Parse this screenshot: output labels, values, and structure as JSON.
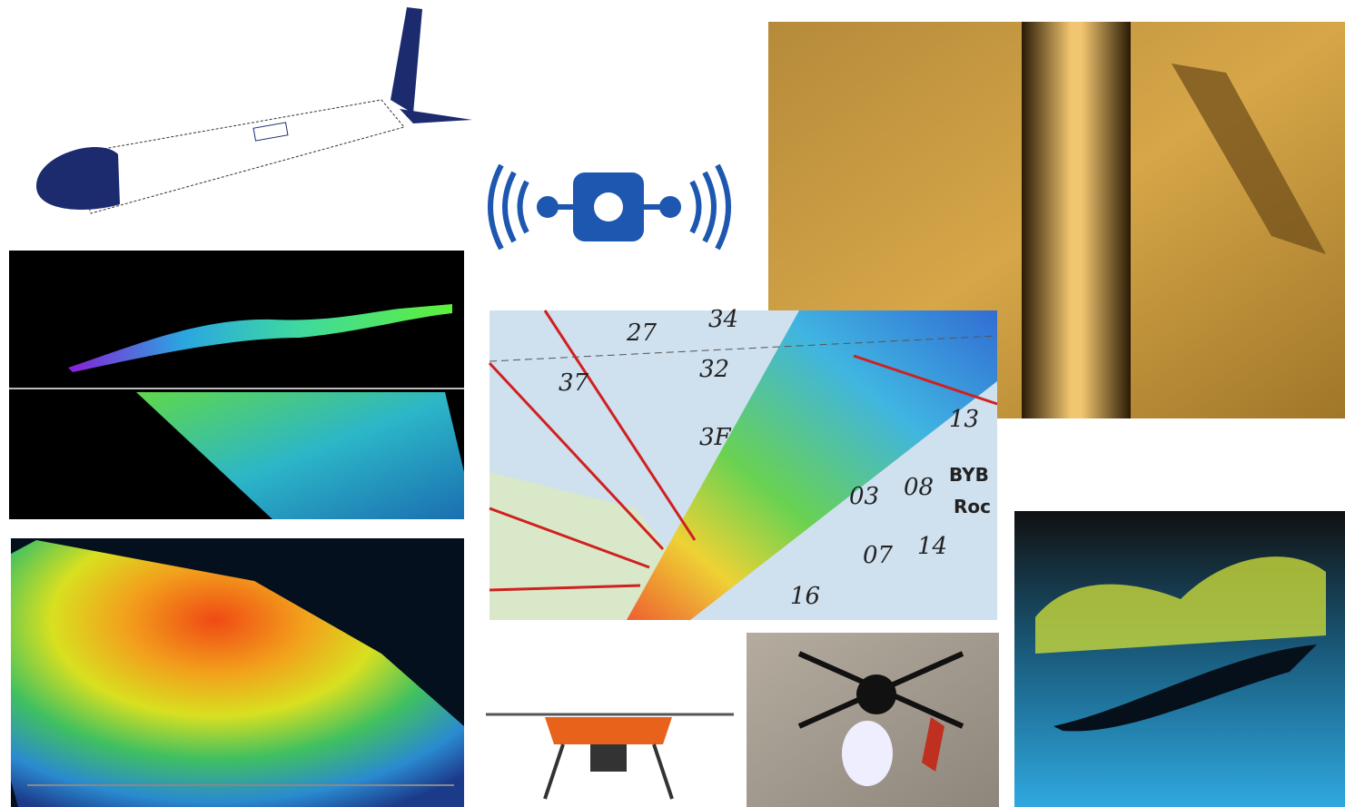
{
  "nautical_chart": {
    "soundings": [
      "27",
      "34",
      "37",
      "32",
      "3F",
      "13",
      "03",
      "08",
      "07",
      "14",
      "16"
    ],
    "labels": [
      "BYB",
      "Roc"
    ]
  }
}
